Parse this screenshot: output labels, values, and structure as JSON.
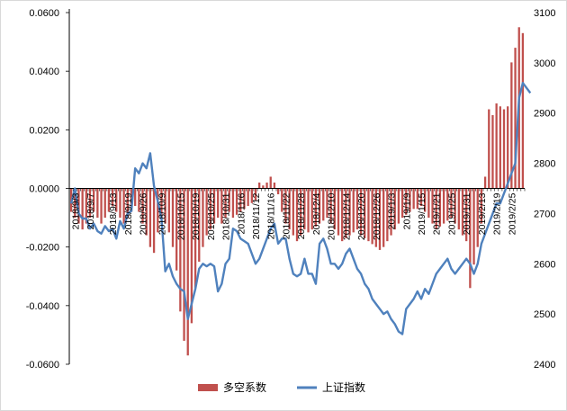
{
  "chart_data": {
    "type": "bar+line",
    "title": "",
    "colors": {
      "bar": "#C0504D",
      "line": "#4F81BD",
      "axis": "#000000"
    },
    "left_axis": {
      "ylim": [
        -0.06,
        0.06
      ],
      "ticks": [
        -0.06,
        -0.04,
        -0.02,
        0.0,
        0.02,
        0.04,
        0.06
      ],
      "tick_labels": [
        "-0.0600",
        "-0.0400",
        "-0.0200",
        "0.0000",
        "0.0200",
        "0.0400",
        "0.0600"
      ]
    },
    "right_axis": {
      "ylim": [
        2400,
        3100
      ],
      "ticks": [
        2400,
        2500,
        2600,
        2700,
        2800,
        2900,
        3000,
        3100
      ],
      "tick_labels": [
        "2400",
        "2500",
        "2600",
        "2700",
        "2800",
        "2900",
        "3000",
        "3100"
      ]
    },
    "x_tick_labels": [
      {
        "i": 1,
        "label": "2018/9/3"
      },
      {
        "i": 5,
        "label": "2018/9/7"
      },
      {
        "i": 11,
        "label": "2018/9/13"
      },
      {
        "i": 15,
        "label": "2018/9/19"
      },
      {
        "i": 19,
        "label": "2018/9/26"
      },
      {
        "i": 24,
        "label": "2018/10/9"
      },
      {
        "i": 29,
        "label": "2018/10/15"
      },
      {
        "i": 33,
        "label": "2018/10/19"
      },
      {
        "i": 37,
        "label": "2018/10/25"
      },
      {
        "i": 41,
        "label": "2018/10/31"
      },
      {
        "i": 45,
        "label": "2018/11/6"
      },
      {
        "i": 49,
        "label": "2018/11/12"
      },
      {
        "i": 53,
        "label": "2018/11/16"
      },
      {
        "i": 57,
        "label": "2018/11/22"
      },
      {
        "i": 61,
        "label": "2018/11/28"
      },
      {
        "i": 65,
        "label": "2018/12/4"
      },
      {
        "i": 69,
        "label": "2018/12/10"
      },
      {
        "i": 73,
        "label": "2018/12/14"
      },
      {
        "i": 77,
        "label": "2018/12/20"
      },
      {
        "i": 81,
        "label": "2018/12/26"
      },
      {
        "i": 85,
        "label": "2019/1/3"
      },
      {
        "i": 89,
        "label": "2019/1/9"
      },
      {
        "i": 93,
        "label": "2019/1/15"
      },
      {
        "i": 97,
        "label": "2019/1/21"
      },
      {
        "i": 101,
        "label": "2019/1/25"
      },
      {
        "i": 105,
        "label": "2019/1/31"
      },
      {
        "i": 109,
        "label": "2019/2/13"
      },
      {
        "i": 113,
        "label": "2019/2/19"
      },
      {
        "i": 117,
        "label": "2019/2/25"
      }
    ],
    "series": [
      {
        "name": "多空系数",
        "type": "bar",
        "axis": "left",
        "values": [
          -0.008,
          -0.01,
          -0.012,
          -0.014,
          -0.012,
          -0.01,
          -0.008,
          -0.01,
          -0.012,
          -0.01,
          -0.008,
          -0.006,
          -0.008,
          -0.01,
          -0.012,
          -0.01,
          -0.008,
          -0.006,
          -0.008,
          -0.012,
          -0.016,
          -0.02,
          -0.022,
          -0.015,
          -0.01,
          -0.012,
          -0.015,
          -0.02,
          -0.028,
          -0.042,
          -0.052,
          -0.057,
          -0.046,
          -0.034,
          -0.025,
          -0.02,
          -0.016,
          -0.014,
          -0.012,
          -0.01,
          -0.012,
          -0.01,
          -0.008,
          -0.01,
          -0.009,
          -0.008,
          -0.007,
          -0.006,
          -0.005,
          -0.004,
          0.002,
          0.001,
          0.002,
          0.004,
          0.002,
          -0.002,
          -0.008,
          -0.012,
          -0.014,
          -0.016,
          -0.018,
          -0.016,
          -0.014,
          -0.015,
          -0.014,
          -0.013,
          -0.012,
          -0.011,
          -0.01,
          -0.012,
          -0.014,
          -0.016,
          -0.018,
          -0.017,
          -0.016,
          -0.015,
          -0.014,
          -0.016,
          -0.017,
          -0.018,
          -0.019,
          -0.02,
          -0.021,
          -0.02,
          -0.018,
          -0.016,
          -0.014,
          -0.012,
          -0.01,
          -0.009,
          -0.008,
          -0.007,
          -0.007,
          -0.006,
          -0.008,
          -0.01,
          -0.012,
          -0.014,
          -0.013,
          -0.012,
          -0.011,
          -0.01,
          -0.012,
          -0.014,
          -0.016,
          -0.018,
          -0.034,
          -0.026,
          -0.02,
          -0.012,
          0.004,
          0.027,
          0.025,
          0.029,
          0.028,
          0.027,
          0.028,
          0.043,
          0.048,
          0.055,
          0.053
        ]
      },
      {
        "name": "上证指数",
        "type": "line",
        "axis": "right",
        "values": [
          2720,
          2750,
          2700,
          2690,
          2690,
          2670,
          2680,
          2665,
          2660,
          2675,
          2665,
          2670,
          2650,
          2685,
          2670,
          2700,
          2705,
          2790,
          2780,
          2800,
          2790,
          2820,
          2755,
          2725,
          2690,
          2585,
          2600,
          2575,
          2560,
          2550,
          2545,
          2490,
          2520,
          2550,
          2590,
          2600,
          2595,
          2600,
          2595,
          2545,
          2560,
          2600,
          2610,
          2670,
          2665,
          2650,
          2645,
          2640,
          2620,
          2600,
          2610,
          2630,
          2650,
          2670,
          2680,
          2640,
          2650,
          2650,
          2610,
          2580,
          2575,
          2580,
          2610,
          2580,
          2580,
          2560,
          2640,
          2650,
          2630,
          2600,
          2600,
          2590,
          2600,
          2620,
          2630,
          2610,
          2590,
          2580,
          2560,
          2550,
          2530,
          2520,
          2510,
          2500,
          2505,
          2490,
          2480,
          2465,
          2460,
          2510,
          2520,
          2530,
          2545,
          2530,
          2550,
          2540,
          2560,
          2580,
          2590,
          2600,
          2610,
          2590,
          2580,
          2590,
          2600,
          2610,
          2600,
          2580,
          2600,
          2640,
          2660,
          2680,
          2700,
          2720,
          2720,
          2740,
          2760,
          2780,
          2800,
          2930,
          2960,
          2950,
          2940
        ]
      }
    ],
    "legend": {
      "position": "bottom",
      "entries": [
        {
          "label": "多空系数",
          "kind": "bar"
        },
        {
          "label": "上证指数",
          "kind": "line"
        }
      ]
    }
  }
}
